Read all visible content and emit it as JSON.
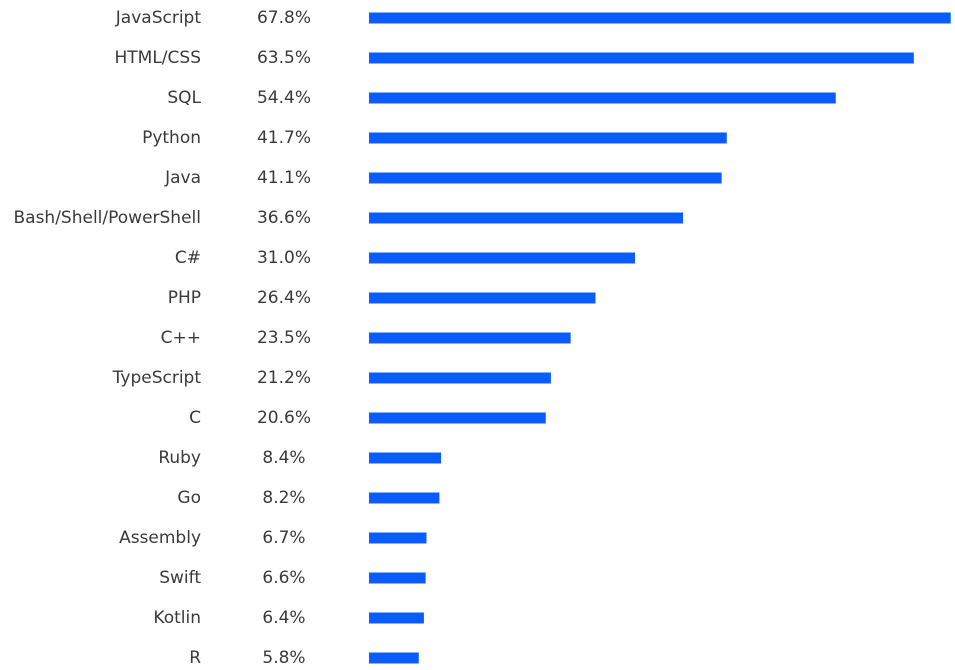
{
  "chart_data": {
    "type": "bar",
    "orientation": "horizontal",
    "categories": [
      "JavaScript",
      "HTML/CSS",
      "SQL",
      "Python",
      "Java",
      "Bash/Shell/PowerShell",
      "C#",
      "PHP",
      "C++",
      "TypeScript",
      "C",
      "Ruby",
      "Go",
      "Assembly",
      "Swift",
      "Kotlin",
      "R"
    ],
    "values": [
      67.8,
      63.5,
      54.4,
      41.7,
      41.1,
      36.6,
      31.0,
      26.4,
      23.5,
      21.2,
      20.6,
      8.4,
      8.2,
      6.7,
      6.6,
      6.4,
      5.8
    ],
    "value_labels": [
      "67.8%",
      "63.5%",
      "54.4%",
      "41.7%",
      "41.1%",
      "36.6%",
      "31.0%",
      "26.4%",
      "23.5%",
      "21.2%",
      "20.6%",
      "8.4%",
      "8.2%",
      "6.7%",
      "6.6%",
      "6.4%",
      "5.8%"
    ],
    "bar_color": "#0a5cff",
    "label_color": "#3a3a3a",
    "grid": false
  }
}
